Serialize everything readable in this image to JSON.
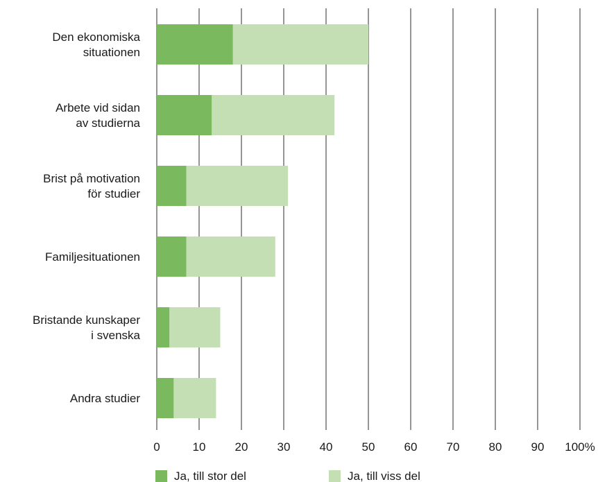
{
  "chart_data": {
    "type": "bar",
    "orientation": "horizontal",
    "stacked": true,
    "categories": [
      [
        "Den ekonomiska",
        "situationen"
      ],
      [
        "Arbete vid sidan",
        "av studierna"
      ],
      [
        "Brist på motivation",
        "för studier"
      ],
      [
        "Familjesituationen"
      ],
      [
        "Bristande kunskaper",
        "i svenska"
      ],
      [
        "Andra studier"
      ]
    ],
    "series": [
      {
        "name": "Ja, till stor del",
        "color": "#7ab95d",
        "values": [
          18,
          13,
          7,
          7,
          3,
          4
        ]
      },
      {
        "name": "Ja, till viss del",
        "color": "#c4dfb3",
        "values": [
          32,
          29,
          24,
          21,
          12,
          10
        ]
      }
    ],
    "xlim": [
      0,
      100
    ],
    "xticks": [
      "0",
      "10",
      "20",
      "30",
      "40",
      "50",
      "60",
      "70",
      "80",
      "90",
      "100%"
    ],
    "title": "",
    "xlabel": "",
    "ylabel": "",
    "grid": "vertical",
    "legend_position": "bottom"
  }
}
